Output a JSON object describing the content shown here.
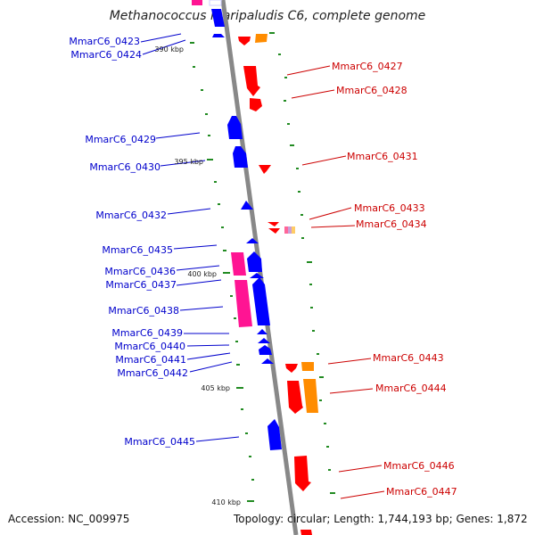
{
  "title": "Methanococcus maripaludis C6, complete genome",
  "footer": {
    "accession": "Accession: NC_009975",
    "summary": "Topology: circular; Length: 1,744,193 bp; Genes: 1,872"
  },
  "ticks": [
    "390 kbp",
    "395 kbp",
    "400 kbp",
    "405 kbp",
    "410 kbp"
  ],
  "genes_left": [
    "MmarC6_0423",
    "MmarC6_0424",
    "MmarC6_0429",
    "MmarC6_0430",
    "MmarC6_0432",
    "MmarC6_0435",
    "MmarC6_0436",
    "MmarC6_0437",
    "MmarC6_0438",
    "MmarC6_0439",
    "MmarC6_0440",
    "MmarC6_0441",
    "MmarC6_0442",
    "MmarC6_0445"
  ],
  "genes_right": [
    "MmarC6_0427",
    "MmarC6_0428",
    "MmarC6_0431",
    "MmarC6_0433",
    "MmarC6_0434",
    "MmarC6_0443",
    "MmarC6_0444",
    "MmarC6_0446",
    "MmarC6_0447"
  ],
  "colors": {
    "forward_cds": "#0000ff",
    "reverse_cds": "#ff0000",
    "forward_rna": "#ff1493",
    "reverse_rna": "#ff8c00",
    "label_left": "#0000cc",
    "label_right": "#cc0000",
    "backbone": "#888888",
    "gc_dots": "#228b22"
  }
}
